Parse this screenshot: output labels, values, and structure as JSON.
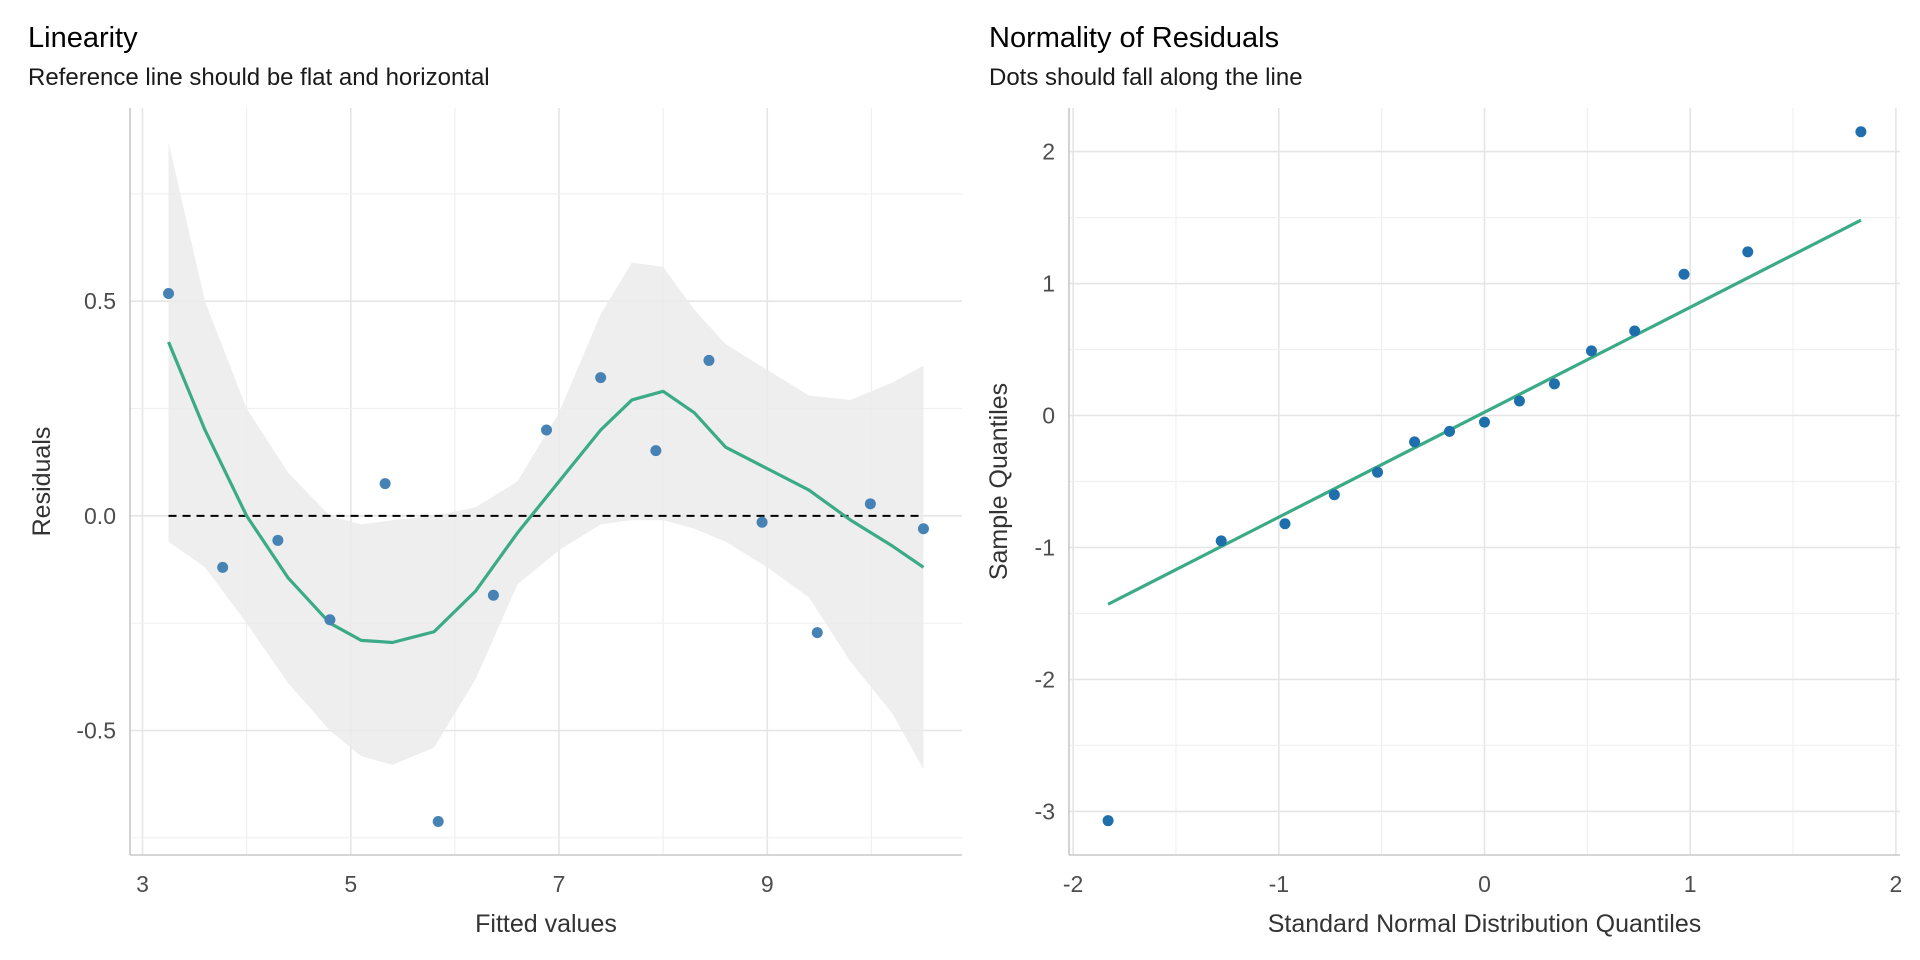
{
  "chart_data": [
    {
      "type": "scatter",
      "title": "Linearity",
      "subtitle": "Reference line should be flat and horizontal",
      "xlabel": "Fitted values",
      "ylabel": "Residuals",
      "xlim": [
        2.88,
        10.87
      ],
      "ylim": [
        -0.79,
        0.95
      ],
      "xticks": [
        3,
        5,
        7,
        9
      ],
      "xtick_labels": [
        "3",
        "5",
        "7",
        "9"
      ],
      "yticks": [
        -0.5,
        0.0,
        0.5
      ],
      "ytick_labels": [
        "-0.5",
        "0.0",
        "0.5"
      ],
      "grid": true,
      "reference_line": {
        "y": 0,
        "style": "dashed",
        "color": "#000000"
      },
      "points": {
        "x": [
          3.25,
          3.77,
          4.3,
          4.8,
          5.33,
          5.84,
          6.37,
          6.88,
          7.4,
          7.93,
          8.44,
          8.95,
          9.48,
          9.99,
          10.5
        ],
        "y": [
          0.518,
          -0.12,
          -0.057,
          -0.242,
          0.075,
          -0.712,
          -0.185,
          0.2,
          0.322,
          0.152,
          0.362,
          -0.015,
          -0.272,
          0.028,
          -0.03
        ],
        "color": "#4682b4"
      },
      "smooth": {
        "x": [
          3.25,
          3.6,
          4.0,
          4.4,
          4.8,
          5.1,
          5.4,
          5.8,
          6.2,
          6.6,
          7.0,
          7.4,
          7.7,
          8.0,
          8.3,
          8.6,
          9.0,
          9.4,
          9.8,
          10.2,
          10.5
        ],
        "y": [
          0.405,
          0.2,
          0.0,
          -0.145,
          -0.25,
          -0.29,
          -0.295,
          -0.27,
          -0.175,
          -0.04,
          0.08,
          0.2,
          0.27,
          0.29,
          0.24,
          0.16,
          0.11,
          0.06,
          -0.01,
          -0.07,
          -0.12
        ],
        "upper": [
          0.87,
          0.5,
          0.25,
          0.1,
          0.0,
          -0.02,
          -0.01,
          0.0,
          0.02,
          0.08,
          0.24,
          0.47,
          0.59,
          0.58,
          0.48,
          0.4,
          0.34,
          0.28,
          0.27,
          0.31,
          0.35
        ],
        "lower": [
          -0.06,
          -0.12,
          -0.25,
          -0.39,
          -0.5,
          -0.56,
          -0.58,
          -0.54,
          -0.38,
          -0.16,
          -0.08,
          -0.02,
          -0.01,
          -0.01,
          -0.03,
          -0.06,
          -0.12,
          -0.19,
          -0.34,
          -0.46,
          -0.59
        ],
        "color": "#3aaa87",
        "band_color": "#ebebeb"
      }
    },
    {
      "type": "scatter",
      "title": "Normality of Residuals",
      "subtitle": "Dots should fall along the line",
      "xlabel": "Standard Normal Distribution Quantiles",
      "ylabel": "Sample Quantiles",
      "xlim": [
        -2.02,
        2.02
      ],
      "ylim": [
        -3.33,
        2.33
      ],
      "xticks": [
        -2,
        -1,
        0,
        1,
        2
      ],
      "xtick_labels": [
        "-2",
        "-1",
        "0",
        "1",
        "2"
      ],
      "yticks": [
        -3,
        -2,
        -1,
        0,
        1,
        2
      ],
      "ytick_labels": [
        "-3",
        "-2",
        "-1",
        "0",
        "1",
        "2"
      ],
      "grid": true,
      "points": {
        "x": [
          -1.83,
          -1.28,
          -0.97,
          -0.73,
          -0.52,
          -0.34,
          -0.17,
          0.0,
          0.17,
          0.34,
          0.52,
          0.73,
          0.97,
          1.28,
          1.83
        ],
        "y": [
          -3.07,
          -0.95,
          -0.82,
          -0.6,
          -0.43,
          -0.2,
          -0.12,
          -0.05,
          0.11,
          0.24,
          0.49,
          0.64,
          1.07,
          1.24,
          2.15
        ],
        "color": "#1f6fad"
      },
      "reference_line": {
        "x": [
          -1.83,
          1.83
        ],
        "y": [
          -1.43,
          1.48
        ],
        "color": "#3aaa87"
      }
    }
  ]
}
